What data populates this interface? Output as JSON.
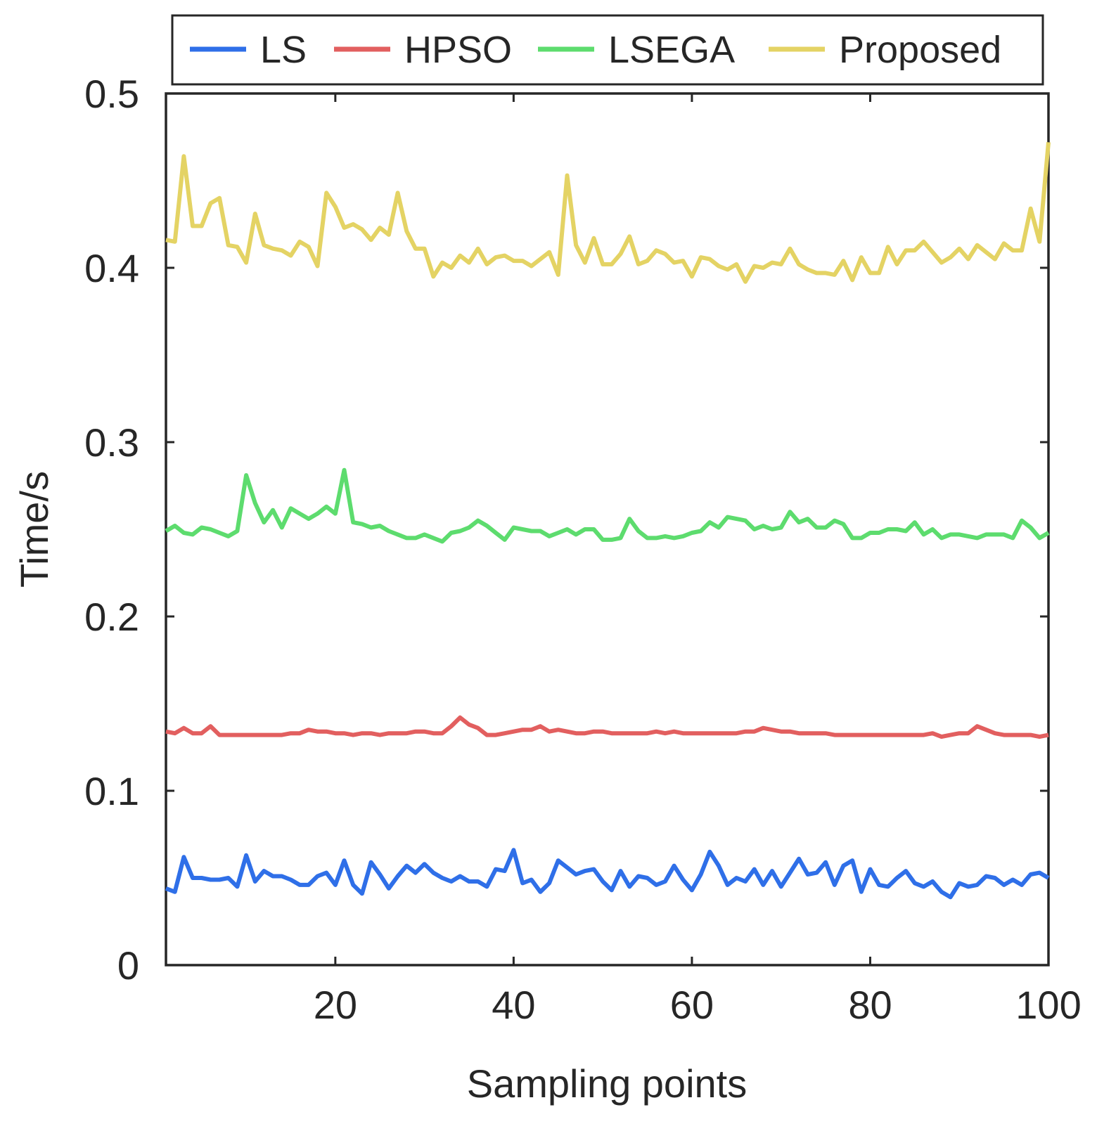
{
  "chart_data": {
    "type": "line",
    "title": "",
    "xlabel": "Sampling points",
    "ylabel": "Time/s",
    "xlim": [
      1,
      100
    ],
    "ylim": [
      0,
      0.5
    ],
    "xticks": [
      20,
      40,
      60,
      80,
      100
    ],
    "xtick_labels": [
      "20",
      "40",
      "60",
      "80",
      "100"
    ],
    "yticks": [
      0,
      0.1,
      0.2,
      0.3,
      0.4,
      0.5
    ],
    "ytick_labels": [
      "0",
      "0.1",
      "0.2",
      "0.3",
      "0.4",
      "0.5"
    ],
    "grid": false,
    "legend_position": "top",
    "x": [
      1,
      2,
      3,
      4,
      5,
      6,
      7,
      8,
      9,
      10,
      11,
      12,
      13,
      14,
      15,
      16,
      17,
      18,
      19,
      20,
      21,
      22,
      23,
      24,
      25,
      26,
      27,
      28,
      29,
      30,
      31,
      32,
      33,
      34,
      35,
      36,
      37,
      38,
      39,
      40,
      41,
      42,
      43,
      44,
      45,
      46,
      47,
      48,
      49,
      50,
      51,
      52,
      53,
      54,
      55,
      56,
      57,
      58,
      59,
      60,
      61,
      62,
      63,
      64,
      65,
      66,
      67,
      68,
      69,
      70,
      71,
      72,
      73,
      74,
      75,
      76,
      77,
      78,
      79,
      80,
      81,
      82,
      83,
      84,
      85,
      86,
      87,
      88,
      89,
      90,
      91,
      92,
      93,
      94,
      95,
      96,
      97,
      98,
      99,
      100
    ],
    "series": [
      {
        "name": "LS",
        "color": "#2f6fe8",
        "values": [
          0.044,
          0.042,
          0.062,
          0.05,
          0.05,
          0.049,
          0.049,
          0.05,
          0.045,
          0.063,
          0.048,
          0.054,
          0.051,
          0.051,
          0.049,
          0.046,
          0.046,
          0.051,
          0.053,
          0.046,
          0.06,
          0.046,
          0.041,
          0.059,
          0.052,
          0.044,
          0.051,
          0.057,
          0.053,
          0.058,
          0.053,
          0.05,
          0.048,
          0.051,
          0.048,
          0.048,
          0.045,
          0.055,
          0.054,
          0.066,
          0.047,
          0.049,
          0.042,
          0.047,
          0.06,
          0.056,
          0.052,
          0.054,
          0.055,
          0.048,
          0.043,
          0.054,
          0.045,
          0.051,
          0.05,
          0.046,
          0.048,
          0.057,
          0.049,
          0.043,
          0.052,
          0.065,
          0.057,
          0.046,
          0.05,
          0.048,
          0.055,
          0.046,
          0.054,
          0.045,
          0.053,
          0.061,
          0.052,
          0.053,
          0.059,
          0.046,
          0.057,
          0.06,
          0.042,
          0.055,
          0.046,
          0.045,
          0.05,
          0.054,
          0.047,
          0.045,
          0.048,
          0.042,
          0.039,
          0.047,
          0.045,
          0.046,
          0.051,
          0.05,
          0.046,
          0.049,
          0.046,
          0.052,
          0.053,
          0.05
        ]
      },
      {
        "name": "HPSO",
        "color": "#e25f5f",
        "values": [
          0.134,
          0.133,
          0.136,
          0.133,
          0.133,
          0.137,
          0.132,
          0.132,
          0.132,
          0.132,
          0.132,
          0.132,
          0.132,
          0.132,
          0.133,
          0.133,
          0.135,
          0.134,
          0.134,
          0.133,
          0.133,
          0.132,
          0.133,
          0.133,
          0.132,
          0.133,
          0.133,
          0.133,
          0.134,
          0.134,
          0.133,
          0.133,
          0.137,
          0.142,
          0.138,
          0.136,
          0.132,
          0.132,
          0.133,
          0.134,
          0.135,
          0.135,
          0.137,
          0.134,
          0.135,
          0.134,
          0.133,
          0.133,
          0.134,
          0.134,
          0.133,
          0.133,
          0.133,
          0.133,
          0.133,
          0.134,
          0.133,
          0.134,
          0.133,
          0.133,
          0.133,
          0.133,
          0.133,
          0.133,
          0.133,
          0.134,
          0.134,
          0.136,
          0.135,
          0.134,
          0.134,
          0.133,
          0.133,
          0.133,
          0.133,
          0.132,
          0.132,
          0.132,
          0.132,
          0.132,
          0.132,
          0.132,
          0.132,
          0.132,
          0.132,
          0.132,
          0.133,
          0.131,
          0.132,
          0.133,
          0.133,
          0.137,
          0.135,
          0.133,
          0.132,
          0.132,
          0.132,
          0.132,
          0.131,
          0.132
        ]
      },
      {
        "name": "LSEGA",
        "color": "#5ddc6e",
        "values": [
          0.249,
          0.252,
          0.248,
          0.247,
          0.251,
          0.25,
          0.248,
          0.246,
          0.249,
          0.281,
          0.265,
          0.254,
          0.261,
          0.251,
          0.262,
          0.259,
          0.256,
          0.259,
          0.263,
          0.259,
          0.284,
          0.254,
          0.253,
          0.251,
          0.252,
          0.249,
          0.247,
          0.245,
          0.245,
          0.247,
          0.245,
          0.243,
          0.248,
          0.249,
          0.251,
          0.255,
          0.252,
          0.248,
          0.244,
          0.251,
          0.25,
          0.249,
          0.249,
          0.246,
          0.248,
          0.25,
          0.247,
          0.25,
          0.25,
          0.244,
          0.244,
          0.245,
          0.256,
          0.249,
          0.245,
          0.245,
          0.246,
          0.245,
          0.246,
          0.248,
          0.249,
          0.254,
          0.251,
          0.257,
          0.256,
          0.255,
          0.25,
          0.252,
          0.25,
          0.251,
          0.26,
          0.254,
          0.256,
          0.251,
          0.251,
          0.255,
          0.253,
          0.245,
          0.245,
          0.248,
          0.248,
          0.25,
          0.25,
          0.249,
          0.254,
          0.247,
          0.25,
          0.245,
          0.247,
          0.247,
          0.246,
          0.245,
          0.247,
          0.247,
          0.247,
          0.245,
          0.255,
          0.251,
          0.245,
          0.248
        ]
      },
      {
        "name": "Proposed",
        "color": "#e4d364",
        "values": [
          0.416,
          0.415,
          0.464,
          0.424,
          0.424,
          0.437,
          0.44,
          0.413,
          0.412,
          0.403,
          0.431,
          0.413,
          0.411,
          0.41,
          0.407,
          0.415,
          0.412,
          0.401,
          0.443,
          0.435,
          0.423,
          0.425,
          0.422,
          0.416,
          0.423,
          0.419,
          0.443,
          0.421,
          0.411,
          0.411,
          0.395,
          0.403,
          0.4,
          0.407,
          0.403,
          0.411,
          0.402,
          0.406,
          0.407,
          0.404,
          0.404,
          0.401,
          0.405,
          0.409,
          0.396,
          0.453,
          0.413,
          0.403,
          0.417,
          0.402,
          0.402,
          0.408,
          0.418,
          0.402,
          0.404,
          0.41,
          0.408,
          0.403,
          0.404,
          0.395,
          0.406,
          0.405,
          0.401,
          0.399,
          0.402,
          0.392,
          0.401,
          0.4,
          0.403,
          0.402,
          0.411,
          0.402,
          0.399,
          0.397,
          0.397,
          0.396,
          0.404,
          0.393,
          0.406,
          0.397,
          0.397,
          0.412,
          0.402,
          0.41,
          0.41,
          0.415,
          0.409,
          0.403,
          0.406,
          0.411,
          0.405,
          0.413,
          0.409,
          0.405,
          0.414,
          0.41,
          0.41,
          0.434,
          0.415,
          0.472
        ]
      }
    ]
  }
}
